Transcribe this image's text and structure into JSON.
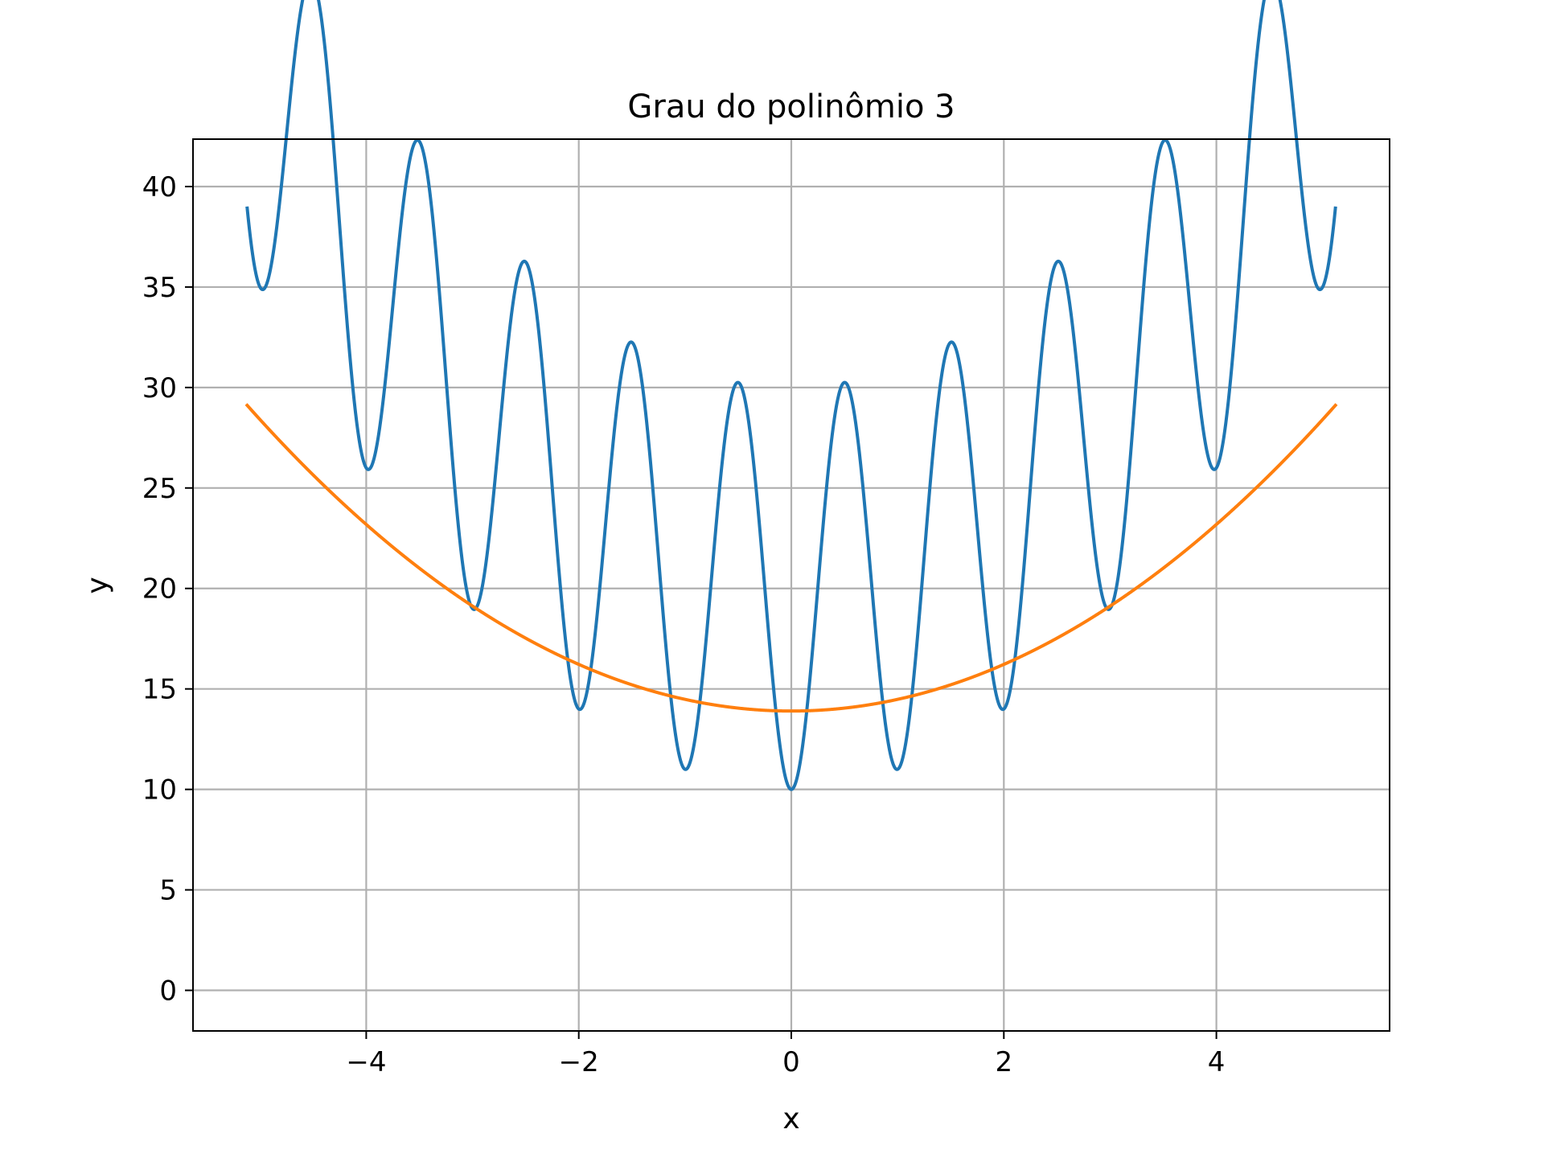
{
  "chart_data": {
    "type": "line",
    "title": "Grau do polinômio 3",
    "xlabel": "x",
    "ylabel": "y",
    "xlim": [
      -5.63,
      5.63
    ],
    "ylim": [
      -2.02,
      42.36
    ],
    "grid": true,
    "xticks": [
      -4,
      -2,
      0,
      2,
      4
    ],
    "xtick_labels": [
      "−4",
      "−2",
      "0",
      "2",
      "4"
    ],
    "yticks": [
      0,
      5,
      10,
      15,
      20,
      25,
      30,
      35,
      40
    ],
    "ytick_labels": [
      "0",
      "5",
      "10",
      "15",
      "20",
      "25",
      "30",
      "35",
      "40"
    ],
    "series": [
      {
        "color": "#1f77b4",
        "x_range": [
          -5.12,
          5.12
        ],
        "formula": "20 + x^2 - 10*cos(2*pi*x)"
      },
      {
        "color": "#ff7f0e",
        "x_range": [
          -5.12,
          5.12
        ],
        "formula": "13.9 + 0.5803*x^2"
      }
    ]
  }
}
